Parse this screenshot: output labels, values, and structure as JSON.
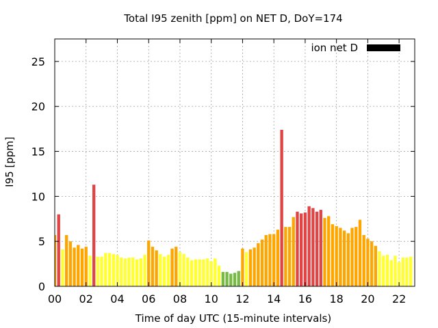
{
  "chart_data": {
    "type": "bar",
    "title": "Total I95 zenith [ppm] on NET D, DoY=174",
    "xlabel": "Time of day UTC (15-minute intervals)",
    "ylabel": "I95 [ppm]",
    "xlim": [
      0,
      23
    ],
    "ylim": [
      0,
      27.5
    ],
    "x_ticks": [
      {
        "value": 0,
        "label": "00"
      },
      {
        "value": 2,
        "label": "02"
      },
      {
        "value": 4,
        "label": "04"
      },
      {
        "value": 6,
        "label": "06"
      },
      {
        "value": 8,
        "label": "08"
      },
      {
        "value": 10,
        "label": "10"
      },
      {
        "value": 12,
        "label": "12"
      },
      {
        "value": 14,
        "label": "14"
      },
      {
        "value": 16,
        "label": "16"
      },
      {
        "value": 18,
        "label": "18"
      },
      {
        "value": 20,
        "label": "20"
      },
      {
        "value": 22,
        "label": "22"
      }
    ],
    "y_ticks": [
      {
        "value": 0,
        "label": "0"
      },
      {
        "value": 5,
        "label": "5"
      },
      {
        "value": 10,
        "label": "10"
      },
      {
        "value": 15,
        "label": "15"
      },
      {
        "value": 20,
        "label": "20"
      },
      {
        "value": 25,
        "label": "25"
      }
    ],
    "grid": true,
    "legend": {
      "label": "ion net D",
      "color": "#000000",
      "placement": "top-right"
    },
    "bar_width_hours": 0.19,
    "color_classes": {
      "green": "#77bb44",
      "yellow": "#ffff33",
      "orange": "#ffa500",
      "red": "#e04444"
    },
    "series": [
      {
        "x": [
          0.0,
          0.25,
          0.5,
          0.75,
          1.0,
          1.25,
          1.5,
          1.75,
          2.0,
          2.25,
          2.5,
          2.75,
          3.0,
          3.25,
          3.5,
          3.75,
          4.0,
          4.25,
          4.5,
          4.75,
          5.0,
          5.25,
          5.5,
          5.75,
          6.0,
          6.25,
          6.5,
          6.75,
          7.0,
          7.25,
          7.5,
          7.75,
          8.0,
          8.25,
          8.5,
          8.75,
          9.0,
          9.25,
          9.5,
          9.75,
          10.0,
          10.25,
          10.5,
          10.75,
          11.0,
          11.25,
          11.5,
          11.75,
          12.0,
          12.25,
          12.5,
          12.75,
          13.0,
          13.25,
          13.5,
          13.75,
          14.0,
          14.25,
          14.5,
          14.75,
          15.0,
          15.25,
          15.5,
          15.75,
          16.0,
          16.25,
          16.5,
          16.75,
          17.0,
          17.25,
          17.5,
          17.75,
          18.0,
          18.25,
          18.5,
          18.75,
          19.0,
          19.25,
          19.5,
          19.75,
          20.0,
          20.25,
          20.5,
          20.75,
          21.0,
          21.25,
          21.5,
          21.75,
          22.0,
          22.25,
          22.5,
          22.75
        ],
        "values": [
          5.7,
          8.0,
          4.1,
          5.7,
          5.0,
          4.3,
          4.6,
          4.2,
          4.4,
          3.4,
          11.3,
          3.3,
          3.3,
          3.7,
          3.7,
          3.6,
          3.5,
          3.2,
          3.1,
          3.2,
          3.2,
          3.0,
          3.1,
          3.5,
          5.1,
          4.4,
          4.0,
          3.6,
          3.3,
          3.5,
          4.2,
          4.4,
          3.8,
          3.6,
          3.2,
          2.9,
          3.0,
          3.0,
          3.0,
          3.1,
          2.8,
          3.1,
          2.3,
          1.6,
          1.6,
          1.4,
          1.5,
          1.7,
          4.2,
          3.8,
          4.1,
          4.3,
          4.8,
          5.2,
          5.7,
          5.8,
          5.8,
          6.3,
          17.4,
          6.6,
          6.6,
          7.7,
          8.3,
          8.1,
          8.2,
          8.9,
          8.7,
          8.3,
          8.5,
          7.6,
          7.8,
          6.9,
          6.7,
          6.5,
          6.2,
          5.9,
          6.5,
          6.6,
          7.4,
          5.7,
          5.3,
          5.0,
          4.5,
          3.9,
          3.4,
          3.5,
          2.9,
          3.4,
          2.7,
          3.2,
          3.2,
          3.3
        ],
        "colors": [
          "orange",
          "red",
          "yellow",
          "orange",
          "orange",
          "orange",
          "orange",
          "orange",
          "orange",
          "yellow",
          "red",
          "yellow",
          "yellow",
          "yellow",
          "yellow",
          "yellow",
          "yellow",
          "yellow",
          "yellow",
          "yellow",
          "yellow",
          "yellow",
          "yellow",
          "yellow",
          "orange",
          "orange",
          "orange",
          "yellow",
          "yellow",
          "yellow",
          "orange",
          "orange",
          "yellow",
          "yellow",
          "yellow",
          "yellow",
          "yellow",
          "yellow",
          "yellow",
          "yellow",
          "yellow",
          "yellow",
          "yellow",
          "green",
          "green",
          "green",
          "green",
          "green",
          "orange",
          "yellow",
          "orange",
          "orange",
          "orange",
          "orange",
          "orange",
          "orange",
          "orange",
          "orange",
          "red",
          "orange",
          "orange",
          "orange",
          "red",
          "red",
          "red",
          "red",
          "red",
          "red",
          "red",
          "orange",
          "orange",
          "orange",
          "orange",
          "orange",
          "orange",
          "orange",
          "orange",
          "orange",
          "orange",
          "orange",
          "orange",
          "orange",
          "orange",
          "yellow",
          "yellow",
          "yellow",
          "yellow",
          "yellow",
          "yellow",
          "yellow",
          "yellow",
          "yellow"
        ]
      }
    ]
  }
}
